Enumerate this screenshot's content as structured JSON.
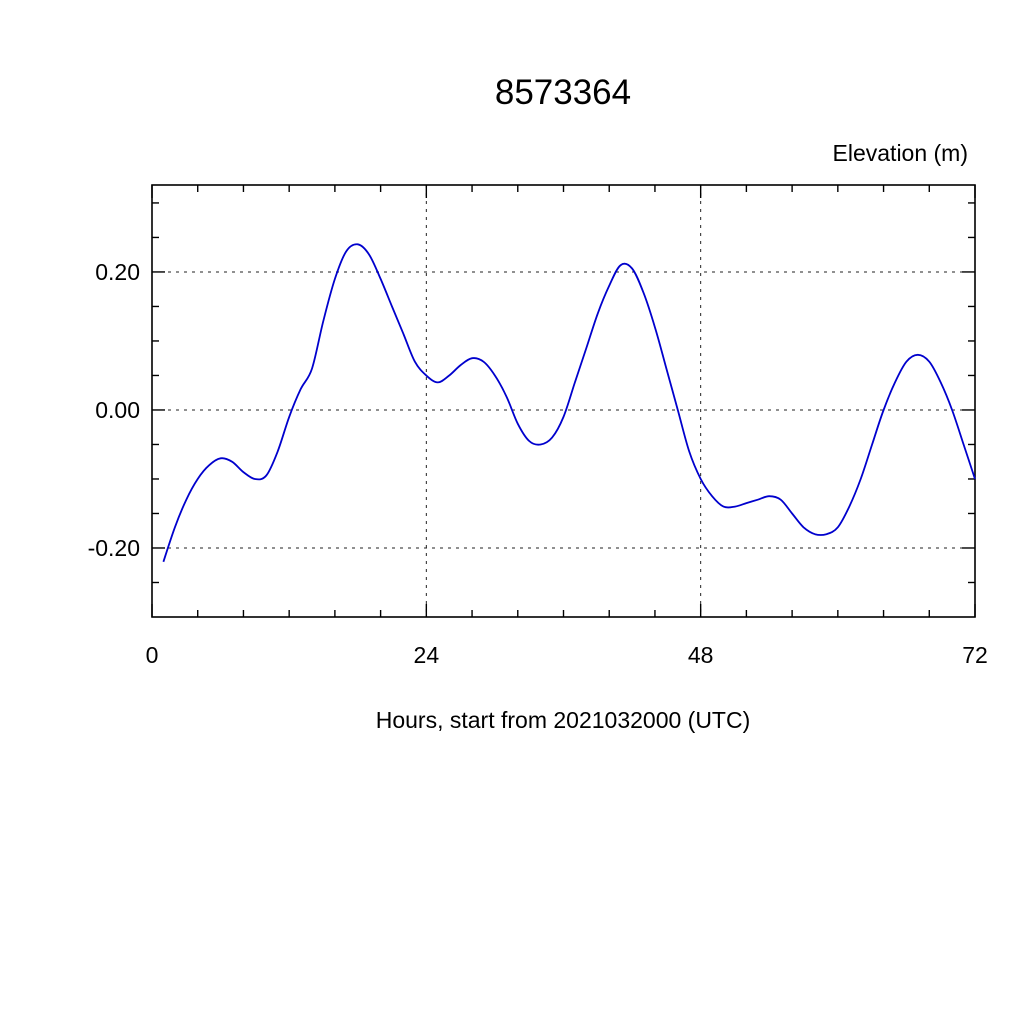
{
  "page": {
    "title": "8573364"
  },
  "chart_data": {
    "type": "line",
    "title": "8573364",
    "ylabel": "Elevation (m)",
    "xlabel": "Hours, start from 2021032000 (UTC)",
    "xlim": [
      0,
      72
    ],
    "ylim": [
      -0.3,
      0.326
    ],
    "xticks_major": [
      0,
      24,
      48,
      72
    ],
    "xtick_labels": [
      "0",
      "24",
      "48",
      "72"
    ],
    "xtick_minor_step": 4,
    "yticks_major": [
      -0.2,
      0.0,
      0.2
    ],
    "ytick_labels": [
      "-0.20",
      "0.00",
      "0.20"
    ],
    "ytick_minor_step": 0.05,
    "grid": {
      "style": "dashed",
      "x_values": [
        24,
        48
      ],
      "y_values": [
        -0.2,
        0.0,
        0.2
      ]
    },
    "legend": "none",
    "line_color": "#0000cd",
    "series": [
      {
        "name": "elevation",
        "x": [
          1,
          2,
          3,
          4,
          5,
          6,
          7,
          8,
          9,
          10,
          11,
          12,
          13,
          14,
          15,
          16,
          17,
          18,
          19,
          20,
          21,
          22,
          23,
          24,
          25,
          26,
          27,
          28,
          29,
          30,
          31,
          32,
          33,
          34,
          35,
          36,
          37,
          38,
          39,
          40,
          41,
          42,
          43,
          44,
          45,
          46,
          47,
          48,
          49,
          50,
          51,
          52,
          53,
          54,
          55,
          56,
          57,
          58,
          59,
          60,
          61,
          62,
          63,
          64,
          65,
          66,
          67,
          68,
          69,
          70,
          71,
          72
        ],
        "y": [
          -0.22,
          -0.17,
          -0.13,
          -0.1,
          -0.08,
          -0.07,
          -0.075,
          -0.09,
          -0.1,
          -0.095,
          -0.06,
          -0.01,
          0.03,
          0.06,
          0.13,
          0.19,
          0.23,
          0.24,
          0.225,
          0.19,
          0.15,
          0.11,
          0.07,
          0.05,
          0.04,
          0.05,
          0.065,
          0.075,
          0.07,
          0.05,
          0.02,
          -0.02,
          -0.045,
          -0.05,
          -0.04,
          -0.01,
          0.04,
          0.09,
          0.14,
          0.18,
          0.21,
          0.205,
          0.17,
          0.12,
          0.06,
          0.0,
          -0.06,
          -0.1,
          -0.125,
          -0.14,
          -0.14,
          -0.135,
          -0.13,
          -0.125,
          -0.13,
          -0.15,
          -0.17,
          -0.18,
          -0.18,
          -0.17,
          -0.14,
          -0.1,
          -0.05,
          0.0,
          0.04,
          0.07,
          0.08,
          0.07,
          0.04,
          0.0,
          -0.05,
          -0.1
        ]
      }
    ]
  }
}
